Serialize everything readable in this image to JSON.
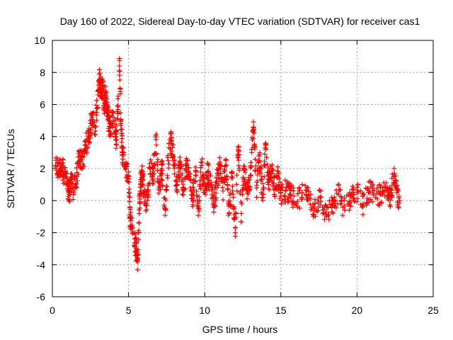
{
  "chart_data": {
    "type": "scatter",
    "title": "Day 160 of 2022, Sidereal Day-to-day VTEC variation (SDTVAR) for receiver cas1",
    "xlabel": "GPS time / hours",
    "ylabel": "SDTVAR / TECUs",
    "xlim": [
      0,
      25
    ],
    "ylim": [
      -6,
      10
    ],
    "xticks": [
      "0",
      "5",
      "10",
      "15",
      "20",
      "25"
    ],
    "yticks": [
      "-6",
      "-4",
      "-2",
      "0",
      "2",
      "4",
      "6",
      "8",
      "10"
    ],
    "grid": true,
    "marker": "+",
    "color": "#ff0000",
    "series": [
      {
        "name": "SDTVAR",
        "x": [
          0.2,
          0.4,
          0.6,
          0.8,
          1.0,
          1.1,
          1.2,
          1.4,
          1.6,
          1.8,
          2.0,
          2.2,
          2.4,
          2.6,
          2.8,
          3.0,
          3.1,
          3.2,
          3.3,
          3.4,
          3.5,
          3.6,
          3.7,
          3.8,
          4.0,
          4.2,
          4.4,
          4.5,
          4.6,
          4.8,
          5.0,
          5.1,
          5.3,
          5.5,
          5.6,
          5.7,
          5.8,
          5.9,
          6.0,
          6.2,
          6.4,
          6.6,
          6.8,
          7.0,
          7.2,
          7.4,
          7.6,
          7.8,
          8.0,
          8.2,
          8.4,
          8.6,
          8.8,
          9.0,
          9.2,
          9.4,
          9.6,
          9.8,
          10.0,
          10.2,
          10.4,
          10.6,
          10.8,
          11.0,
          11.2,
          11.4,
          11.6,
          11.8,
          12.0,
          12.2,
          12.4,
          12.6,
          12.8,
          13.0,
          13.2,
          13.4,
          13.6,
          13.8,
          14.0,
          14.2,
          14.4,
          14.6,
          14.8,
          15.0,
          15.3,
          15.6,
          16.0,
          16.4,
          16.8,
          17.2,
          17.6,
          18.0,
          18.4,
          18.8,
          19.2,
          19.6,
          20.0,
          20.4,
          20.8,
          21.2,
          21.6,
          22.0,
          22.2,
          22.4,
          22.6,
          22.8
        ],
        "y": [
          2.2,
          1.8,
          2.3,
          1.5,
          1.0,
          0.4,
          1.2,
          0.6,
          1.5,
          2.8,
          2.3,
          3.5,
          4.0,
          5.2,
          4.6,
          6.6,
          7.6,
          6.9,
          7.2,
          5.8,
          6.5,
          5.6,
          5.0,
          4.6,
          5.2,
          3.8,
          8.4,
          5.0,
          3.0,
          2.2,
          1.5,
          -1.0,
          -2.0,
          -3.0,
          -3.8,
          -0.8,
          1.2,
          1.6,
          0.5,
          -0.3,
          2.0,
          1.6,
          3.8,
          0.8,
          2.0,
          -0.5,
          2.5,
          3.9,
          2.2,
          1.0,
          2.4,
          0.6,
          2.2,
          1.5,
          0.3,
          1.6,
          -0.5,
          2.2,
          0.5,
          1.8,
          1.0,
          -0.2,
          1.2,
          2.3,
          0.6,
          2.2,
          -0.8,
          1.5,
          -2.0,
          3.2,
          -0.8,
          2.0,
          0.5,
          1.6,
          4.6,
          0.8,
          2.5,
          0.2,
          3.2,
          1.0,
          2.0,
          0.8,
          1.5,
          0.3,
          0.6,
          0.4,
          -0.2,
          0.5,
          0.3,
          -0.5,
          0.2,
          -1.0,
          -0.3,
          0.4,
          -0.6,
          0.3,
          0.5,
          -0.2,
          0.6,
          0.2,
          0.4,
          0.8,
          0.3,
          1.5,
          0.5,
          0.0
        ]
      }
    ]
  }
}
